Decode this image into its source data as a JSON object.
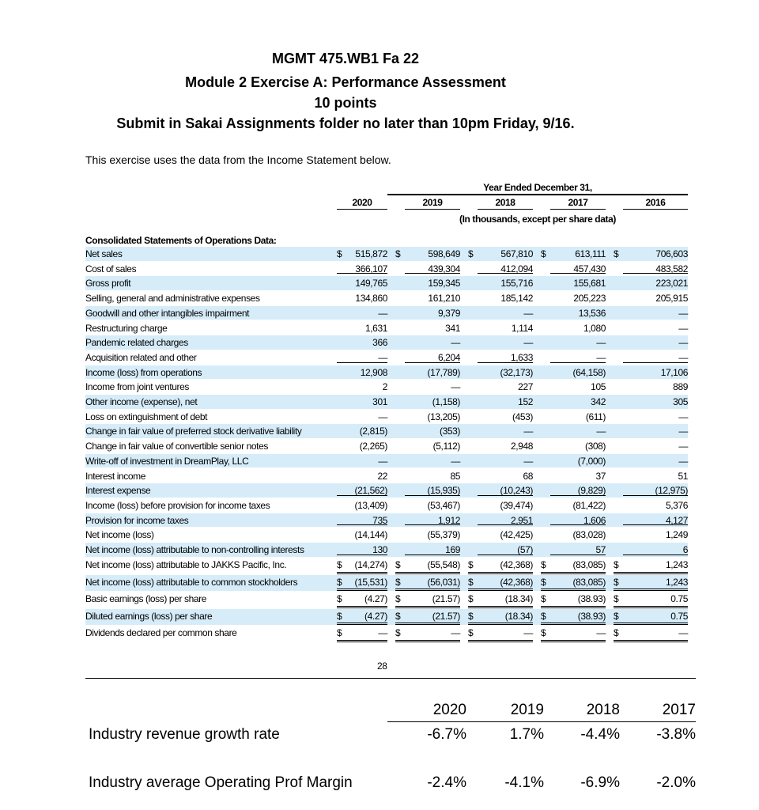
{
  "header": {
    "course": "MGMT 475.WB1  Fa 22",
    "module": "Module 2 Exercise A: Performance Assessment",
    "points": "10 points",
    "submit": "Submit in Sakai Assignments folder no later than 10pm Friday, 9/16."
  },
  "intro": "This exercise uses the data from the Income Statement below.",
  "statement": {
    "period_heading": "Year Ended December 31,",
    "years": [
      "2020",
      "2019",
      "2018",
      "2017",
      "2016"
    ],
    "units_note": "(In thousands, except per share data)",
    "section_title": "Consolidated Statements of Operations Data:",
    "currency_symbol": "$",
    "rows": [
      {
        "label": "Net sales",
        "values": [
          "515,872",
          "598,649",
          "567,810",
          "613,111",
          "706,603"
        ],
        "dollar": true
      },
      {
        "label": "Cost of sales",
        "values": [
          "366,107",
          "439,304",
          "412,094",
          "457,430",
          "483,582"
        ]
      },
      {
        "label": "Gross profit",
        "values": [
          "149,765",
          "159,345",
          "155,716",
          "155,681",
          "223,021"
        ]
      },
      {
        "label": "Selling, general and administrative expenses",
        "values": [
          "134,860",
          "161,210",
          "185,142",
          "205,223",
          "205,915"
        ]
      },
      {
        "label": "Goodwill and other intangibles impairment",
        "values": [
          "—",
          "9,379",
          "—",
          "13,536",
          "—"
        ]
      },
      {
        "label": "Restructuring charge",
        "values": [
          "1,631",
          "341",
          "1,114",
          "1,080",
          "—"
        ]
      },
      {
        "label": "Pandemic related charges",
        "values": [
          "366",
          "—",
          "—",
          "—",
          "—"
        ]
      },
      {
        "label": "Acquisition related and other",
        "values": [
          "—",
          "6,204",
          "1,633",
          "—",
          "—"
        ]
      },
      {
        "label": "Income (loss) from operations",
        "values": [
          "12,908",
          "(17,789)",
          "(32,173)",
          "(64,158)",
          "17,106"
        ]
      },
      {
        "label": "Income from joint ventures",
        "values": [
          "2",
          "—",
          "227",
          "105",
          "889"
        ]
      },
      {
        "label": "Other income (expense), net",
        "values": [
          "301",
          "(1,158)",
          "152",
          "342",
          "305"
        ]
      },
      {
        "label": "Loss on extinguishment of debt",
        "values": [
          "—",
          "(13,205)",
          "(453)",
          "(611)",
          "—"
        ]
      },
      {
        "label": "Change in fair value of preferred stock derivative liability",
        "values": [
          "(2,815)",
          "(353)",
          "—",
          "—",
          "—"
        ]
      },
      {
        "label": "Change in fair value of convertible senior notes",
        "values": [
          "(2,265)",
          "(5,112)",
          "2,948",
          "(308)",
          "—"
        ]
      },
      {
        "label": "Write-off of investment in DreamPlay, LLC",
        "values": [
          "—",
          "—",
          "—",
          "(7,000)",
          "—"
        ]
      },
      {
        "label": "Interest income",
        "values": [
          "22",
          "85",
          "68",
          "37",
          "51"
        ]
      },
      {
        "label": "Interest expense",
        "values": [
          "(21,562)",
          "(15,935)",
          "(10,243)",
          "(9,829)",
          "(12,975)"
        ]
      },
      {
        "label": "Income (loss) before provision for income taxes",
        "values": [
          "(13,409)",
          "(53,467)",
          "(39,474)",
          "(81,422)",
          "5,376"
        ]
      },
      {
        "label": "Provision for income taxes",
        "values": [
          "735",
          "1,912",
          "2,951",
          "1,606",
          "4,127"
        ]
      },
      {
        "label": "Net income (loss)",
        "values": [
          "(14,144)",
          "(55,379)",
          "(42,425)",
          "(83,028)",
          "1,249"
        ]
      },
      {
        "label": "Net income (loss) attributable to non-controlling interests",
        "values": [
          "130",
          "169",
          "(57)",
          "57",
          "6"
        ]
      },
      {
        "label": "Net income (loss) attributable to JAKKS Pacific, Inc.",
        "values": [
          "(14,274)",
          "(55,548)",
          "(42,368)",
          "(83,085)",
          "1,243"
        ],
        "dollar": true
      },
      {
        "label": "Net income (loss) attributable to common stockholders",
        "values": [
          "(15,531)",
          "(56,031)",
          "(42,368)",
          "(83,085)",
          "1,243"
        ],
        "dollar": true
      },
      {
        "label": "Basic earnings (loss) per share",
        "values": [
          "(4.27)",
          "(21.57)",
          "(18.34)",
          "(38.93)",
          "0.75"
        ],
        "dollar": true
      },
      {
        "label": "Diluted earnings (loss) per share",
        "values": [
          "(4.27)",
          "(21.57)",
          "(18.34)",
          "(38.93)",
          "0.75"
        ],
        "dollar": true
      },
      {
        "label": "Dividends declared per common share",
        "values": [
          "—",
          "—",
          "—",
          "—",
          "—"
        ],
        "dollar": true
      }
    ],
    "page_number": "28"
  },
  "industry": {
    "years": [
      "2020",
      "2019",
      "2018",
      "2017"
    ],
    "rows": [
      {
        "label": "Industry revenue growth rate",
        "values": [
          "-6.7%",
          "1.7%",
          "-4.4%",
          "-3.8%"
        ]
      },
      {
        "label": "Industry average Operating Prof Margin",
        "values": [
          "-2.4%",
          "-4.1%",
          "-6.9%",
          "-2.0%"
        ]
      }
    ]
  }
}
